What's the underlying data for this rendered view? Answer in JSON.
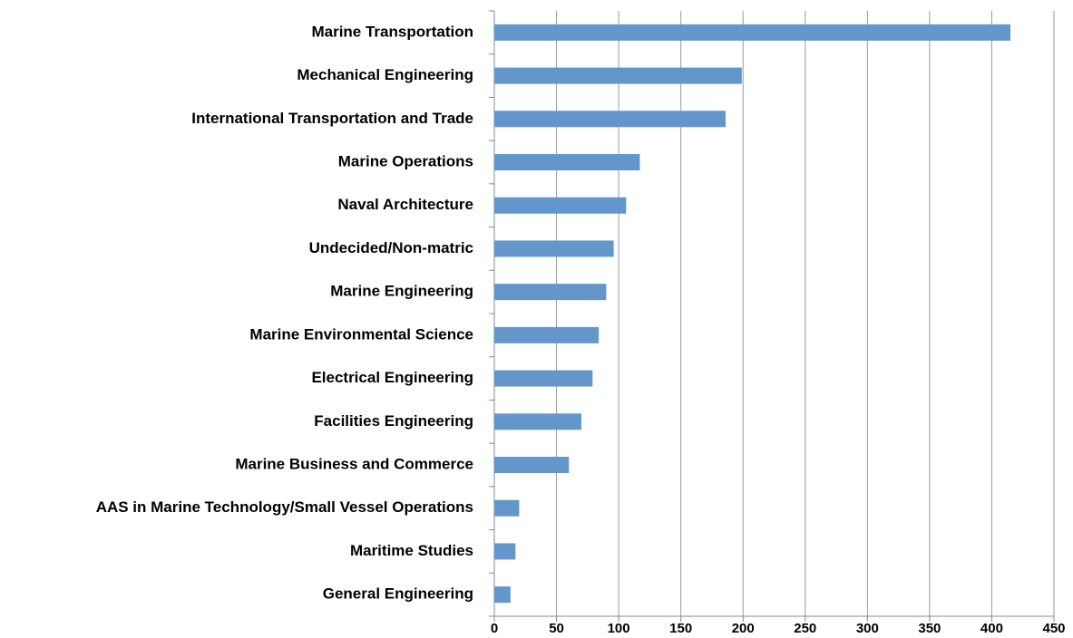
{
  "chart_data": {
    "type": "barh",
    "categories": [
      "Marine Transportation",
      "Mechanical Engineering",
      "International Transportation and Trade",
      "Marine Operations",
      "Naval Architecture",
      "Undecided/Non-matric",
      "Marine Engineering",
      "Marine Environmental Science",
      "Electrical Engineering",
      "Facilities Engineering",
      "Marine Business and Commerce",
      "AAS in Marine Technology/Small Vessel Operations",
      "Maritime Studies",
      "General Engineering"
    ],
    "values": [
      415,
      199,
      186,
      117,
      106,
      96,
      90,
      84,
      79,
      70,
      60,
      20,
      17,
      13
    ],
    "color": "#6397cb",
    "xlim": [
      0,
      450
    ],
    "xticks": [
      0,
      50,
      100,
      150,
      200,
      250,
      300,
      350,
      400,
      450
    ],
    "grid": true
  }
}
